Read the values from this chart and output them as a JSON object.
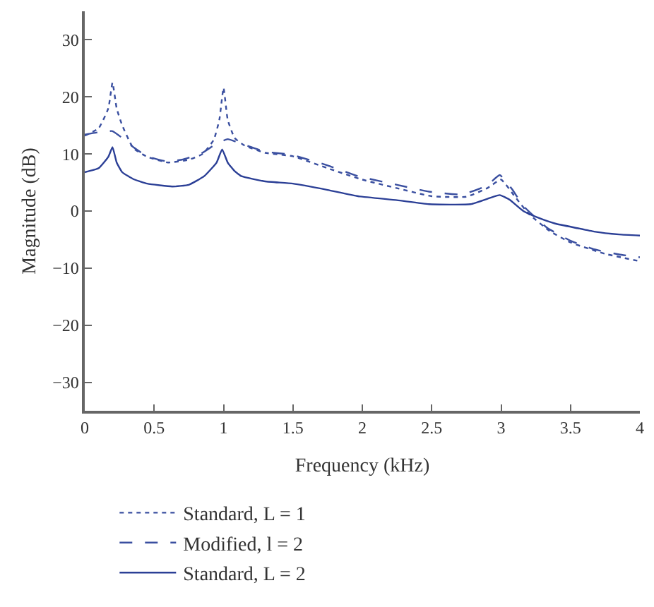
{
  "chart_data": {
    "type": "line",
    "xlabel": "Frequency (kHz)",
    "ylabel": "Magnitude (dB)",
    "xlim": [
      0,
      4
    ],
    "ylim": [
      -35,
      35
    ],
    "xticks": [
      0,
      0.5,
      1,
      1.5,
      2,
      2.5,
      3,
      3.5,
      4
    ],
    "yticks": [
      -30,
      -20,
      -10,
      0,
      10,
      20,
      30
    ],
    "legend": "bottom",
    "marker": "none",
    "series": [
      {
        "name": "Standard, L = 1",
        "color": "#3a4fa0",
        "line_style": "dotted",
        "x": [
          0,
          0.1,
          0.17,
          0.2,
          0.23,
          0.27,
          0.35,
          0.45,
          0.6,
          0.75,
          0.85,
          0.93,
          0.97,
          1.0,
          1.03,
          1.08,
          1.15,
          1.3,
          1.5,
          1.75,
          2.0,
          2.25,
          2.5,
          2.75,
          2.9,
          3.0,
          3.1,
          3.2,
          3.35,
          3.5,
          3.75,
          4.0
        ],
        "values": [
          13.2,
          14.5,
          18,
          22.5,
          18,
          15,
          11,
          9.5,
          8.5,
          9,
          10,
          12.5,
          16,
          21.6,
          16,
          12.8,
          11.5,
          10.2,
          9.6,
          7.5,
          5.5,
          4,
          2.6,
          2.5,
          4,
          5.5,
          2.5,
          -0.5,
          -3.5,
          -5.5,
          -7.5,
          -8.8
        ]
      },
      {
        "name": "Modified, l = 2",
        "color": "#3a4fa0",
        "line_style": "dashed",
        "x": [
          0,
          0.1,
          0.2,
          0.27,
          0.35,
          0.45,
          0.59,
          0.7,
          0.84,
          0.95,
          1.03,
          1.15,
          1.3,
          1.48,
          1.75,
          1.97,
          2.25,
          2.48,
          2.72,
          2.9,
          2.99,
          3.08,
          3.16,
          3.33,
          3.5,
          3.67,
          3.85,
          4.0
        ],
        "values": [
          13.4,
          13.8,
          14.0,
          12.8,
          11.2,
          9.6,
          8.7,
          9.0,
          10.1,
          11.8,
          12.6,
          11.6,
          10.4,
          9.9,
          8.0,
          6.1,
          4.6,
          3.4,
          2.9,
          4.5,
          6.3,
          3.8,
          0.9,
          -2.9,
          -5.2,
          -6.7,
          -7.6,
          -8.1
        ]
      },
      {
        "name": "Standard, L = 2",
        "color": "#2b3f96",
        "line_style": "solid",
        "x": [
          0,
          0.1,
          0.17,
          0.2,
          0.23,
          0.27,
          0.35,
          0.45,
          0.63,
          0.75,
          0.86,
          0.95,
          0.99,
          1.03,
          1.08,
          1.13,
          1.3,
          1.5,
          1.75,
          1.97,
          2.25,
          2.48,
          2.78,
          2.92,
          2.99,
          3.06,
          3.16,
          3.27,
          3.39,
          3.55,
          3.67,
          3.85,
          4.0
        ],
        "values": [
          6.8,
          7.5,
          9.5,
          11.2,
          8.5,
          6.8,
          5.6,
          4.8,
          4.3,
          4.6,
          6.1,
          8.5,
          10.8,
          8.5,
          7.0,
          6.1,
          5.2,
          4.8,
          3.7,
          2.6,
          1.9,
          1.2,
          1.2,
          2.3,
          2.8,
          2,
          0,
          -1.2,
          -2.2,
          -3.0,
          -3.6,
          -4.1,
          -4.3
        ]
      }
    ]
  }
}
